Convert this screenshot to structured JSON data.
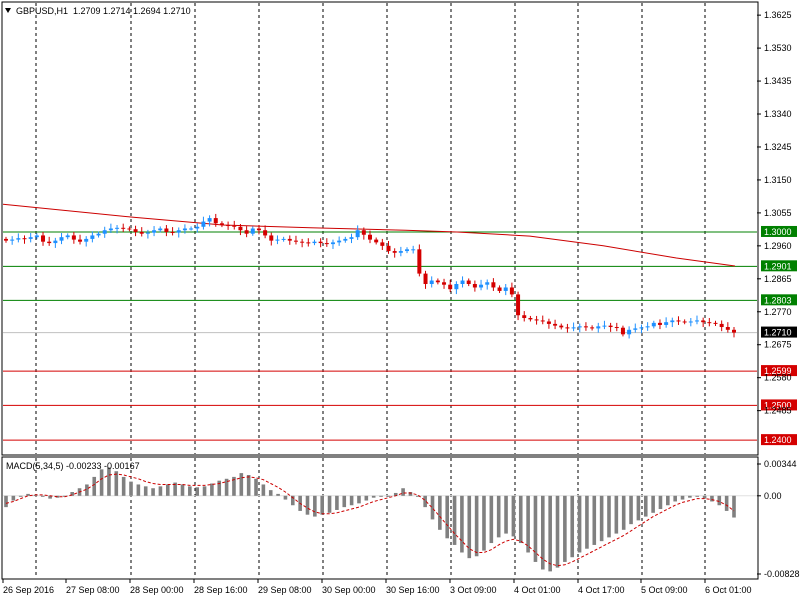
{
  "header": {
    "symbol": "GBPUSD,H1",
    "ohlc": "1.2709 1.2714 1.2694 1.2710",
    "menu_icon": "triangle-down-icon"
  },
  "macd_header": {
    "label": "MACD(5,34,5) -0.00233 -0.00167"
  },
  "colors": {
    "bull_candle": "#1e90ff",
    "bear_candle": "#d40000",
    "support_line": "#008000",
    "resistance_line": "#d40000",
    "moving_average": "#cc0000",
    "macd_histogram": "#808080",
    "macd_signal": "#cc0000",
    "current_price_tag": "#000000"
  },
  "chart_data": [
    {
      "type": "line",
      "title": "",
      "price_axis_ticks": [
        "1.3625",
        "1.3530",
        "1.3435",
        "1.3340",
        "1.3245",
        "1.3150",
        "1.3055",
        "1.2960",
        "1.2865",
        "1.2770",
        "1.2675",
        "1.2580",
        "1.2485"
      ],
      "time_axis_ticks": [
        "26 Sep 2016",
        "27 Sep 08:00",
        "28 Sep 00:00",
        "28 Sep 16:00",
        "29 Sep 08:00",
        "30 Sep 00:00",
        "30 Sep 16:00",
        "3 Oct 09:00",
        "4 Oct 01:00",
        "4 Oct 17:00",
        "5 Oct 09:00",
        "6 Oct 01:00"
      ],
      "ylim": [
        1.236,
        1.366
      ],
      "grid": true,
      "horizontal_levels": [
        {
          "label": "1.3000",
          "value": 1.3,
          "kind": "support"
        },
        {
          "label": "1.2901",
          "value": 1.2901,
          "kind": "support"
        },
        {
          "label": "1.2803",
          "value": 1.2803,
          "kind": "support"
        },
        {
          "label": "1.2599",
          "value": 1.2599,
          "kind": "resistance"
        },
        {
          "label": "1.2500",
          "value": 1.25,
          "kind": "resistance"
        },
        {
          "label": "1.2400",
          "value": 1.24,
          "kind": "resistance"
        }
      ],
      "current_price": {
        "label": "1.2710",
        "value": 1.271
      },
      "series": [
        {
          "kind": "close",
          "values": [
            1.2975,
            1.2978,
            1.2982,
            1.298,
            1.2985,
            1.299,
            1.2972,
            1.2968,
            1.2975,
            1.2985,
            1.299,
            1.2978,
            1.2972,
            1.298,
            1.299,
            1.2995,
            1.3005,
            1.301,
            1.3012,
            1.301,
            1.3008,
            1.3,
            1.2995,
            1.2998,
            1.3005,
            1.301,
            1.3,
            1.2998,
            1.3005,
            1.301,
            1.301,
            1.3015,
            1.303,
            1.304,
            1.3025,
            1.302,
            1.3018,
            1.3015,
            1.3005,
            1.2995,
            1.301,
            1.3005,
            1.299,
            1.2975,
            1.2978,
            1.298,
            1.2975,
            1.2972,
            1.297,
            1.2968,
            1.2972,
            1.2968,
            1.2965,
            1.297,
            1.2975,
            1.298,
            1.2985,
            1.3005,
            1.2992,
            1.2978,
            1.297,
            1.296,
            1.2945,
            1.294,
            1.2945,
            1.295,
            1.295,
            1.288,
            1.285,
            1.286,
            1.2855,
            1.2848,
            1.2835,
            1.285,
            1.286,
            1.285,
            1.284,
            1.2848,
            1.2855,
            1.284,
            1.283,
            1.284,
            1.282,
            1.276,
            1.2752,
            1.2748,
            1.2745,
            1.2742,
            1.2735,
            1.273,
            1.2725,
            1.2722,
            1.2725,
            1.2728,
            1.2725,
            1.2722,
            1.2728,
            1.273,
            1.2726,
            1.2724,
            1.2705,
            1.2718,
            1.2722,
            1.2725,
            1.2728,
            1.2738,
            1.2732,
            1.274,
            1.2745,
            1.2742,
            1.274,
            1.2742,
            1.2745,
            1.274,
            1.2738,
            1.2735,
            1.2726,
            1.2718,
            1.271
          ]
        },
        {
          "kind": "moving_average",
          "x_fraction": [
            0,
            0.18,
            0.3,
            0.42,
            0.55,
            0.62,
            0.72,
            0.82,
            0.92,
            1.0
          ],
          "values": [
            1.308,
            1.3042,
            1.302,
            1.3012,
            1.3005,
            1.3,
            1.2988,
            1.296,
            1.2925,
            1.2902
          ]
        }
      ]
    },
    {
      "type": "bar",
      "title": "",
      "price_axis_ticks": [
        "0.00344",
        "0.00",
        "-0.00828"
      ],
      "ylim": [
        -0.0087,
        0.004
      ],
      "series": [
        {
          "kind": "histogram",
          "values": [
            -0.0012,
            -0.0005,
            0.0,
            0.0002,
            0.0001,
            0.0,
            -0.0003,
            -0.0002,
            0.0,
            0.0004,
            0.0008,
            0.0012,
            0.002,
            0.0028,
            0.003,
            0.0026,
            0.002,
            0.0015,
            0.0012,
            0.001,
            0.0008,
            0.001,
            0.0012,
            0.0014,
            0.0012,
            0.001,
            0.0009,
            0.001,
            0.0013,
            0.0016,
            0.0018,
            0.002,
            0.0024,
            0.0022,
            0.0018,
            0.0012,
            0.0006,
            0.0002,
            -0.0004,
            -0.001,
            -0.0016,
            -0.002,
            -0.0022,
            -0.002,
            -0.0018,
            -0.0015,
            -0.0012,
            -0.001,
            -0.0008,
            -0.0005,
            -0.0002,
            -0.0001,
            0.0,
            0.0003,
            0.0008,
            0.0004,
            0.0,
            -0.0012,
            -0.0025,
            -0.0036,
            -0.0045,
            -0.0052,
            -0.006,
            -0.0066,
            -0.0064,
            -0.0058,
            -0.005,
            -0.0044,
            -0.004,
            -0.0043,
            -0.005,
            -0.006,
            -0.007,
            -0.0078,
            -0.008,
            -0.0076,
            -0.007,
            -0.0065,
            -0.006,
            -0.0056,
            -0.0052,
            -0.0048,
            -0.0044,
            -0.004,
            -0.0036,
            -0.003,
            -0.0026,
            -0.0022,
            -0.0018,
            -0.0014,
            -0.001,
            -0.0006,
            -0.0004,
            -0.0002,
            -0.0001,
            -0.0003,
            -0.0006,
            -0.001,
            -0.0016,
            -0.0023
          ],
          "color": "#808080"
        },
        {
          "kind": "signal",
          "values": [
            -0.0008,
            -0.0006,
            -0.0003,
            0.0,
            0.0001,
            0.0001,
            0.0,
            -0.0001,
            -0.0001,
            0.0001,
            0.0004,
            0.0007,
            0.0012,
            0.0018,
            0.0022,
            0.0023,
            0.0022,
            0.002,
            0.0018,
            0.0015,
            0.0013,
            0.0012,
            0.0012,
            0.0012,
            0.0012,
            0.0011,
            0.0011,
            0.0011,
            0.0012,
            0.0013,
            0.0015,
            0.0017,
            0.0019,
            0.002,
            0.0019,
            0.0017,
            0.0013,
            0.0009,
            0.0004,
            -0.0002,
            -0.0008,
            -0.0013,
            -0.0017,
            -0.0019,
            -0.0019,
            -0.0018,
            -0.0016,
            -0.0014,
            -0.0012,
            -0.0009,
            -0.0006,
            -0.0004,
            -0.0002,
            0.0,
            0.0003,
            0.0003,
            0.0001,
            -0.0005,
            -0.0013,
            -0.0022,
            -0.0031,
            -0.004,
            -0.0048,
            -0.0056,
            -0.006,
            -0.006,
            -0.0057,
            -0.0052,
            -0.0048,
            -0.0046,
            -0.0048,
            -0.0053,
            -0.006,
            -0.0067,
            -0.0072,
            -0.0074,
            -0.0073,
            -0.007,
            -0.0066,
            -0.0062,
            -0.0058,
            -0.0054,
            -0.005,
            -0.0046,
            -0.0042,
            -0.0037,
            -0.0032,
            -0.0027,
            -0.0022,
            -0.0018,
            -0.0014,
            -0.001,
            -0.0007,
            -0.0005,
            -0.0003,
            -0.0003,
            -0.0004,
            -0.0006,
            -0.001,
            -0.0016
          ],
          "color": "#cc0000"
        }
      ]
    }
  ]
}
